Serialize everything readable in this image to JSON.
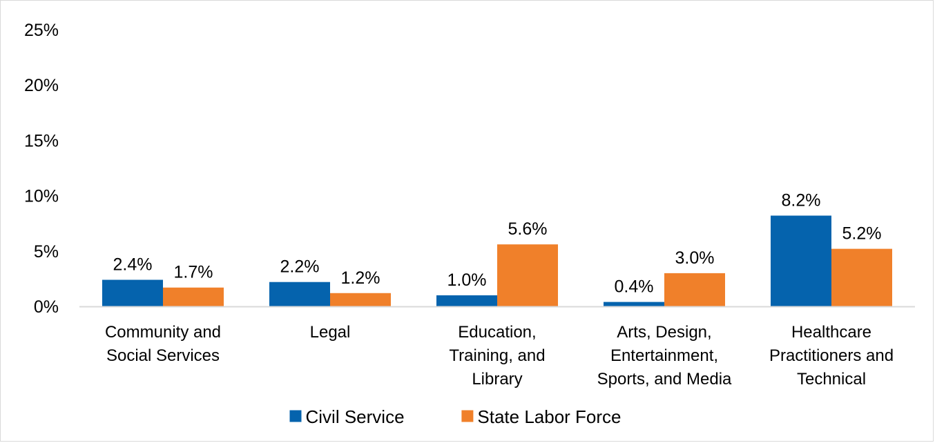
{
  "chart_data": {
    "type": "bar",
    "title": "",
    "xlabel": "",
    "ylabel": "",
    "categories": [
      [
        "Community and",
        "Social Services"
      ],
      [
        "Legal"
      ],
      [
        "Education,",
        "Training, and",
        "Library"
      ],
      [
        "Arts, Design,",
        "Entertainment,",
        "Sports, and Media"
      ],
      [
        "Healthcare",
        "Practitioners and",
        "Technical"
      ]
    ],
    "series": [
      {
        "name": "Civil Service",
        "color": "#0563AD",
        "values": [
          2.4,
          2.2,
          1.0,
          0.4,
          8.2
        ],
        "labels": [
          "2.4%",
          "2.2%",
          "1.0%",
          "0.4%",
          "8.2%"
        ]
      },
      {
        "name": "State Labor Force",
        "color": "#F0802A",
        "values": [
          1.7,
          1.2,
          5.6,
          3.0,
          5.2
        ],
        "labels": [
          "1.7%",
          "1.2%",
          "5.6%",
          "3.0%",
          "5.2%"
        ]
      }
    ],
    "ylim": [
      0,
      25
    ],
    "yticks": [
      {
        "value": 0,
        "label": "0%"
      },
      {
        "value": 5,
        "label": "5%"
      },
      {
        "value": 10,
        "label": "10%"
      },
      {
        "value": 15,
        "label": "15%"
      },
      {
        "value": 20,
        "label": "20%"
      },
      {
        "value": 25,
        "label": "25%"
      }
    ],
    "grid": false,
    "legend_position": "bottom",
    "axis_color": "#d9d9d9"
  }
}
